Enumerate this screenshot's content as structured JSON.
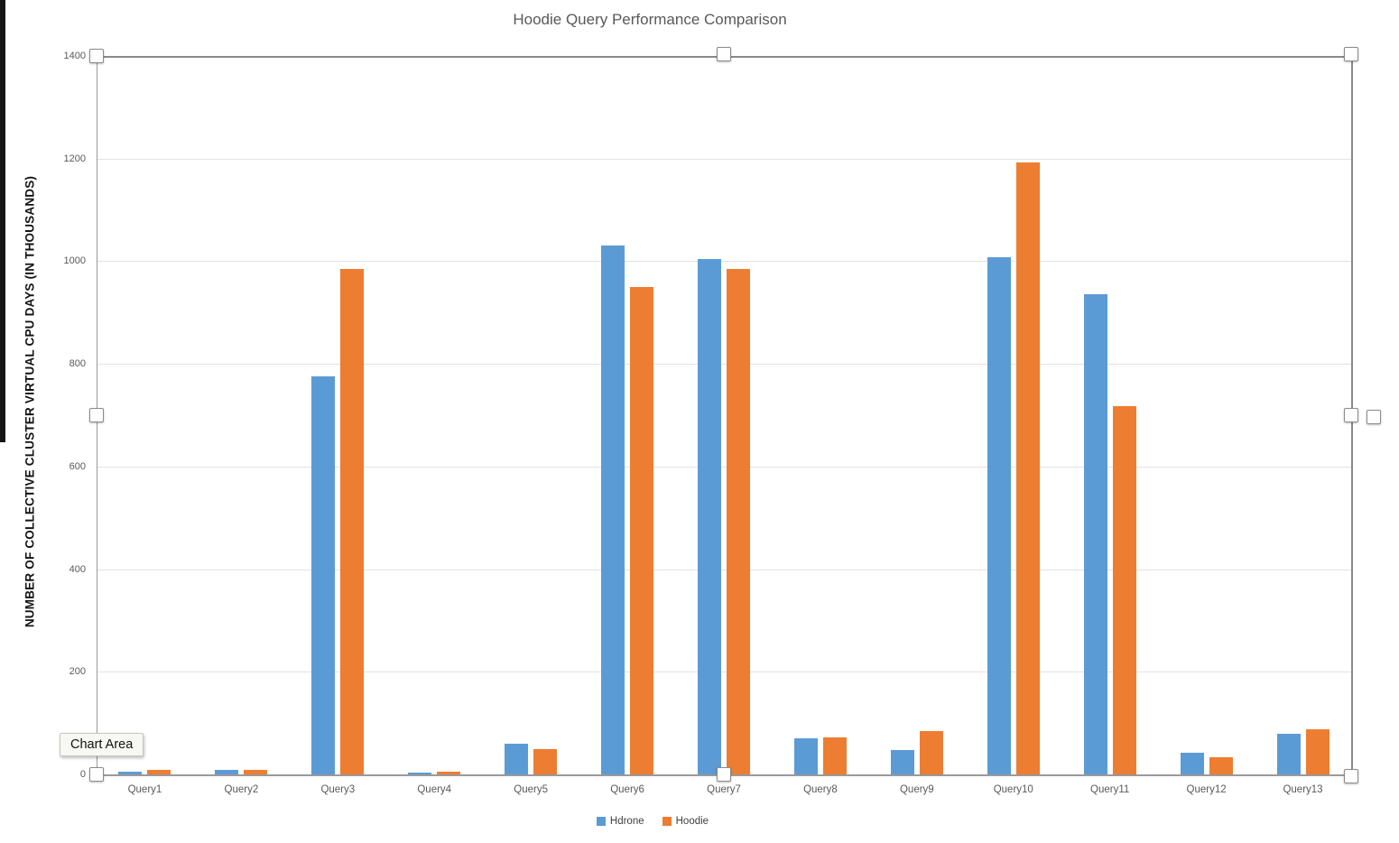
{
  "chart_data": {
    "type": "bar",
    "title": "Hoodie Query Performance Comparison",
    "ylabel": "NUMBER OF COLLECTIVE CLUSTER VIRTUAL CPU DAYS (IN THOUSANDS)",
    "xlabel": "",
    "categories": [
      "Query1",
      "Query2",
      "Query3",
      "Query4",
      "Query5",
      "Query6",
      "Query7",
      "Query8",
      "Query9",
      "Query10",
      "Query11",
      "Query12",
      "Query13"
    ],
    "series": [
      {
        "name": "Hdrone",
        "color": "#5B9BD5",
        "values": [
          5,
          8,
          775,
          4,
          60,
          1030,
          1005,
          70,
          48,
          1008,
          935,
          42,
          80
        ]
      },
      {
        "name": "Hoodie",
        "color": "#ED7D31",
        "values": [
          9,
          9,
          985,
          5,
          50,
          950,
          985,
          72,
          84,
          1193,
          718,
          34,
          88
        ]
      }
    ],
    "ylim": [
      0,
      1400
    ],
    "ytick_interval": 200,
    "grid": true,
    "legend_position": "bottom"
  },
  "tooltip": {
    "label": "Chart Area"
  },
  "colors": {
    "hdrone": "#5B9BD5",
    "hoodie": "#ED7D31",
    "gridline": "#e2e2e2",
    "axis": "#9a9a9a",
    "text": "#595959"
  }
}
